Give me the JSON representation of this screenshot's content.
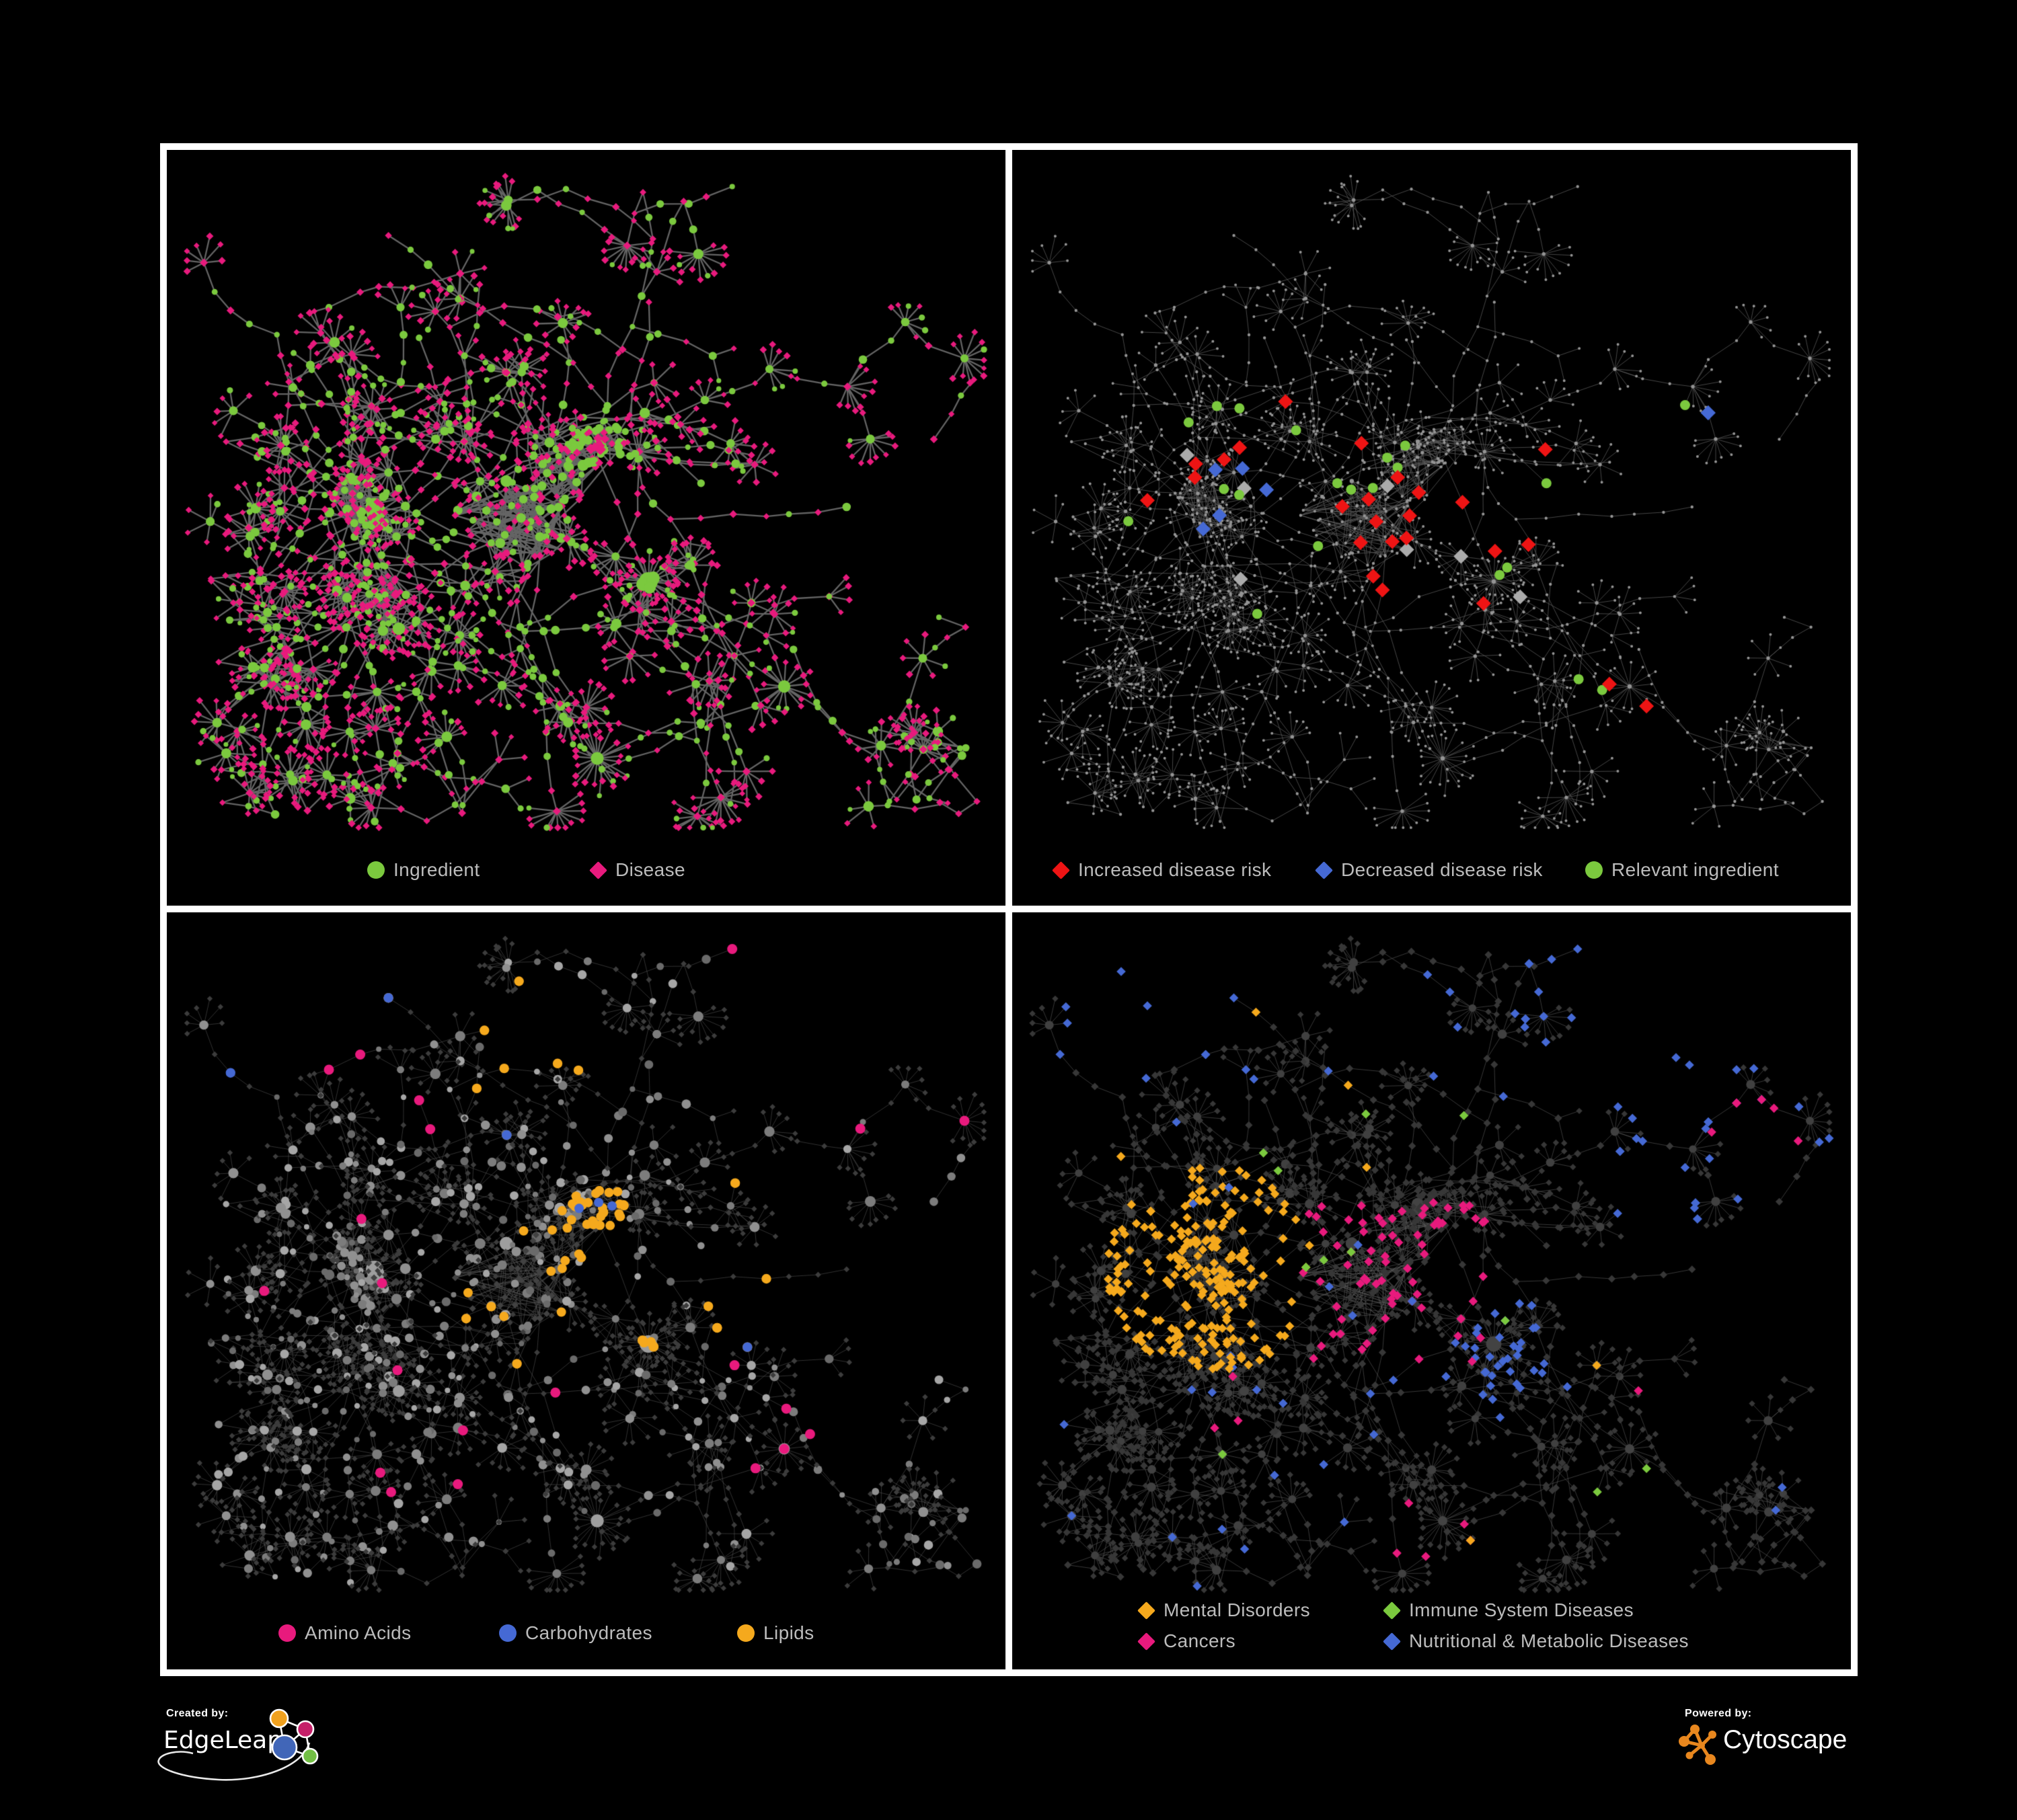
{
  "footer": {
    "created_by": "Created by:",
    "edgeleap": "EdgeLeap",
    "powered_by": "Powered by:",
    "cytoscape": "Cytoscape"
  },
  "colors": {
    "background": "#000000",
    "frame": "#ffffff",
    "green": "#7bc93e",
    "pink": "#e81a7d",
    "red": "#ee1414",
    "blue": "#4569d4",
    "orange": "#f5a91d",
    "gray_highlight": "#ababab",
    "legend_text": "#bcbcbc",
    "edgeleap_orange": "#f0a11e",
    "edgeleap_magenta": "#c52069",
    "edgeleap_blue": "#4166b8",
    "edgeleap_green": "#72bf44",
    "cytoscape_orange": "#e8871e"
  },
  "chart_data": {
    "type": "network",
    "description": "Four styled views of the same ingredient-disease association network",
    "network": {
      "seed": 7,
      "nodes_approx": 650,
      "clusters": {
        "left_hub": [
          295,
          530
        ],
        "center_blob": [
          515,
          555
        ],
        "upper_center_blob": [
          588,
          482
        ],
        "ne_blob": [
          640,
          436
        ],
        "se_star": [
          716,
          642
        ],
        "bottom_star": [
          640,
          905
        ],
        "ne_arm_end": [
          1186,
          310
        ]
      }
    },
    "panels": [
      {
        "id": "ingredient-disease",
        "legend": [
          {
            "label": "Ingredient",
            "color": "#7bc93e",
            "shape": "circle"
          },
          {
            "label": "Disease",
            "color": "#e81a7d",
            "shape": "diamond"
          }
        ]
      },
      {
        "id": "disease-risk",
        "legend": [
          {
            "label": "Increased disease risk",
            "color": "#ee1414",
            "shape": "diamond"
          },
          {
            "label": "Decreased disease risk",
            "color": "#4569d4",
            "shape": "diamond"
          },
          {
            "label": "Relevant ingredient",
            "color": "#7bc93e",
            "shape": "circle"
          }
        ],
        "highlights": {
          "red": [
            [
              401,
              366
            ],
            [
              519,
              443
            ],
            [
              267,
              461
            ],
            [
              312,
              462
            ],
            [
              340,
              454
            ],
            [
              199,
              523
            ],
            [
              272,
              485
            ],
            [
              486,
              534
            ],
            [
              531,
              521
            ],
            [
              537,
              545
            ],
            [
              580,
              484
            ],
            [
              600,
              503
            ],
            [
              588,
              541
            ],
            [
              531,
              585
            ],
            [
              555,
              589
            ],
            [
              588,
              582
            ],
            [
              535,
              636
            ],
            [
              551,
              640
            ],
            [
              665,
              527
            ],
            [
              713,
              593
            ],
            [
              770,
              589
            ],
            [
              701,
              669
            ],
            [
              802,
              457
            ],
            [
              900,
              801
            ],
            [
              944,
              849
            ]
          ],
          "blue": [
            [
              300,
              475
            ],
            [
              344,
              475
            ],
            [
              373,
              505
            ],
            [
              304,
              541
            ],
            [
              288,
              563
            ],
            [
              1037,
              388
            ],
            [
              1062,
              393
            ]
          ],
          "green": [
            [
              263,
              399
            ],
            [
              300,
              384
            ],
            [
              336,
              384
            ],
            [
              430,
              417
            ],
            [
              316,
              505
            ],
            [
              336,
              516
            ],
            [
              166,
              552
            ],
            [
              486,
              497
            ],
            [
              502,
              501
            ],
            [
              535,
              497
            ],
            [
              555,
              461
            ],
            [
              580,
              475
            ],
            [
              580,
              439
            ],
            [
              466,
              592
            ],
            [
              365,
              684
            ],
            [
              760,
              503
            ],
            [
              725,
              625
            ],
            [
              733,
              629
            ],
            [
              851,
              790
            ],
            [
              879,
              812
            ],
            [
              932,
              823
            ],
            [
              1001,
              406
            ]
          ],
          "gray": [
            [
              267,
              450
            ],
            [
              352,
              497
            ],
            [
              344,
              625
            ],
            [
              561,
              501
            ],
            [
              597,
              600
            ],
            [
              673,
              611
            ],
            [
              754,
              669
            ]
          ]
        }
      },
      {
        "id": "nutrient-classes",
        "legend": [
          {
            "label": "Amino Acids",
            "color": "#e81a7d",
            "shape": "circle"
          },
          {
            "label": "Carbohydrates",
            "color": "#4569d4",
            "shape": "circle"
          },
          {
            "label": "Lipids",
            "color": "#f5a91d",
            "shape": "circle"
          }
        ],
        "highlights": {
          "pink": [
            [
              146,
              567
            ],
            [
              317,
              549
            ],
            [
              296,
              454
            ],
            [
              227,
              205
            ],
            [
              292,
              212
            ],
            [
              373,
              271
            ],
            [
              406,
              296
            ],
            [
              345,
              684
            ],
            [
              442,
              761
            ],
            [
              584,
              702
            ],
            [
              445,
              839
            ],
            [
              317,
              841
            ],
            [
              337,
              870
            ],
            [
              852,
              688
            ],
            [
              925,
              735
            ],
            [
              929,
              805
            ],
            [
              872,
              834
            ],
            [
              836,
              33
            ],
            [
              994,
              304
            ],
            [
              1193,
              311
            ],
            [
              997,
              767
            ]
          ],
          "blue": [
            [
              69,
              278
            ],
            [
              357,
              66
            ],
            [
              515,
              326
            ],
            [
              860,
              633
            ]
          ],
          "orange": [
            [
              312,
              84
            ],
            [
              544,
              102
            ],
            [
              495,
              194
            ],
            [
              576,
              194
            ],
            [
              620,
              220
            ],
            [
              479,
              257
            ],
            [
              512,
              242
            ],
            [
              830,
              401
            ],
            [
              909,
              578
            ],
            [
              828,
              606
            ],
            [
              836,
              620
            ],
            [
              861,
              637
            ],
            [
              531,
              666
            ],
            [
              442,
              611
            ],
            [
              487,
              592
            ],
            [
              822,
              567
            ]
          ]
        }
      },
      {
        "id": "disease-classes",
        "legend": [
          {
            "label": "Mental Disorders",
            "color": "#f5a91d",
            "shape": "diamond"
          },
          {
            "label": "Immune System Diseases",
            "color": "#7bc93e",
            "shape": "diamond"
          },
          {
            "label": "Cancers",
            "color": "#e81a7d",
            "shape": "diamond"
          },
          {
            "label": "Nutritional & Metabolic Diseases",
            "color": "#4569d4",
            "shape": "diamond"
          }
        ],
        "highlights": {
          "green": [
            [
              519,
              293
            ],
            [
              648,
              296
            ],
            [
              377,
              369
            ],
            [
              401,
              388
            ],
            [
              434,
              523
            ],
            [
              474,
              512
            ],
            [
              502,
              505
            ],
            [
              728,
              607
            ],
            [
              312,
              805
            ],
            [
              877,
              872
            ],
            [
              938,
              835
            ]
          ],
          "pink": [
            [
              1062,
              278
            ],
            [
              1090,
              298
            ],
            [
              1117,
              279
            ],
            [
              1133,
              304
            ],
            [
              1157,
              338
            ],
            [
              1066,
              316
            ],
            [
              590,
              891
            ],
            [
              663,
              903
            ],
            [
              695,
              958
            ],
            [
              582,
              951
            ],
            [
              616,
              960
            ],
            [
              964,
              706
            ],
            [
              326,
              686
            ],
            [
              298,
              767
            ],
            [
              332,
              772
            ]
          ],
          "blue": [
            [
              162,
              88
            ],
            [
              201,
              139
            ],
            [
              242,
              173
            ],
            [
              174,
              192
            ],
            [
              282,
              157
            ],
            [
              334,
              95
            ],
            [
              600,
              88
            ],
            [
              640,
              113
            ],
            [
              762,
              62
            ],
            [
              809,
              64
            ],
            [
              836,
              97
            ],
            [
              768,
              155
            ],
            [
              739,
              256
            ],
            [
              987,
              216
            ],
            [
              1007,
              227
            ],
            [
              1039,
              247
            ],
            [
              1015,
              260
            ],
            [
              938,
              340
            ],
            [
              917,
              399
            ],
            [
              948,
              401
            ],
            [
              976,
              417
            ],
            [
              1001,
              439
            ],
            [
              1033,
              446
            ],
            [
              227,
              929
            ],
            [
              308,
              907
            ],
            [
              389,
              841
            ],
            [
              482,
              920
            ],
            [
              510,
              497
            ],
            [
              592,
              585
            ],
            [
              464,
              565
            ]
          ],
          "orange": [
            [
              365,
              135
            ],
            [
              162,
              351
            ],
            [
              503,
              271
            ],
            [
              527,
              391
            ],
            [
              679,
              936
            ],
            [
              869,
              681
            ]
          ]
        }
      }
    ]
  }
}
